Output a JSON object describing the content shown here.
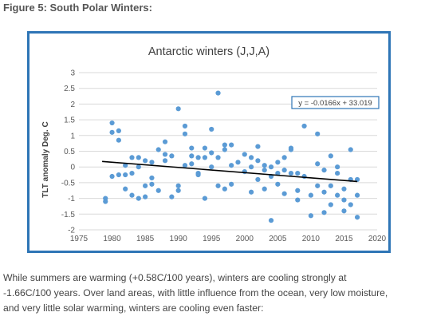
{
  "figure_heading": "Figure 5:  South Polar Winters:",
  "caption_lines": [
    "While summers are warming (+0.58C/100 years), winters are cooling strongly at",
    "-1.66C/100 years.  Over land areas, with little influence from the ocean, very low moisture,",
    "and very little solar warming, winters are cooling even faster:"
  ],
  "colors": {
    "frame": "#2e75b6",
    "points": "#5b9bd5",
    "trend": "#000000",
    "grid": "#d9d9d9",
    "equation_border": "#2e75b6"
  },
  "chart_data": {
    "type": "scatter",
    "title": "Antarctic winters (J,J,A)",
    "xlabel": "",
    "ylabel": "TLT anomaly Deg. C",
    "xlim": [
      1975,
      2020
    ],
    "ylim": [
      -2,
      3
    ],
    "x_ticks": [
      1975,
      1980,
      1985,
      1990,
      1995,
      2000,
      2005,
      2010,
      2015,
      2020
    ],
    "y_ticks": [
      -2,
      -1.5,
      -1,
      -0.5,
      0,
      0.5,
      1,
      1.5,
      2,
      2.5,
      3
    ],
    "grid": "horizontal",
    "legend": "none",
    "trendline": {
      "slope": -0.0166,
      "intercept": 33.019,
      "x_range": [
        1978.5,
        2017
      ],
      "equation": "y = -0.0166x + 33.019"
    },
    "points": [
      [
        1979,
        -1.0
      ],
      [
        1979,
        -1.1
      ],
      [
        1980,
        1.4
      ],
      [
        1980,
        1.1
      ],
      [
        1980,
        -0.3
      ],
      [
        1981,
        1.15
      ],
      [
        1981,
        0.85
      ],
      [
        1981,
        -0.25
      ],
      [
        1982,
        0.05
      ],
      [
        1982,
        -0.7
      ],
      [
        1982,
        -0.25
      ],
      [
        1983,
        0.3
      ],
      [
        1983,
        -0.2
      ],
      [
        1983,
        -0.9
      ],
      [
        1984,
        0.3
      ],
      [
        1984,
        -1.0
      ],
      [
        1984,
        0.0
      ],
      [
        1985,
        0.2
      ],
      [
        1985,
        -0.6
      ],
      [
        1985,
        -0.95
      ],
      [
        1986,
        0.15
      ],
      [
        1986,
        -0.35
      ],
      [
        1986,
        -0.55
      ],
      [
        1987,
        0.55
      ],
      [
        1987,
        -0.75
      ],
      [
        1988,
        0.8
      ],
      [
        1988,
        0.4
      ],
      [
        1988,
        0.2
      ],
      [
        1989,
        0.35
      ],
      [
        1989,
        -0.95
      ],
      [
        1990,
        1.85
      ],
      [
        1990,
        -0.6
      ],
      [
        1990,
        -0.75
      ],
      [
        1991,
        1.3
      ],
      [
        1991,
        1.05
      ],
      [
        1991,
        0.05
      ],
      [
        1992,
        0.6
      ],
      [
        1992,
        0.35
      ],
      [
        1992,
        0.1
      ],
      [
        1993,
        0.3
      ],
      [
        1993,
        -0.2
      ],
      [
        1993,
        -0.25
      ],
      [
        1994,
        0.6
      ],
      [
        1994,
        0.3
      ],
      [
        1994,
        -1.0
      ],
      [
        1995,
        1.2
      ],
      [
        1995,
        0.45
      ],
      [
        1995,
        0.0
      ],
      [
        1996,
        2.35
      ],
      [
        1996,
        0.3
      ],
      [
        1996,
        -0.6
      ],
      [
        1997,
        0.7
      ],
      [
        1997,
        0.55
      ],
      [
        1997,
        -0.7
      ],
      [
        1998,
        0.7
      ],
      [
        1998,
        0.05
      ],
      [
        1998,
        -0.55
      ],
      [
        1999,
        0.15
      ],
      [
        2000,
        0.4
      ],
      [
        2000,
        -0.15
      ],
      [
        2001,
        0.3
      ],
      [
        2001,
        0.0
      ],
      [
        2001,
        -0.8
      ],
      [
        2002,
        0.65
      ],
      [
        2002,
        0.2
      ],
      [
        2002,
        -0.4
      ],
      [
        2003,
        0.05
      ],
      [
        2003,
        -0.1
      ],
      [
        2003,
        -0.7
      ],
      [
        2004,
        -1.7
      ],
      [
        2004,
        -0.3
      ],
      [
        2004,
        0.0
      ],
      [
        2005,
        0.15
      ],
      [
        2005,
        -0.2
      ],
      [
        2005,
        -0.55
      ],
      [
        2006,
        0.3
      ],
      [
        2006,
        -0.1
      ],
      [
        2006,
        -0.85
      ],
      [
        2007,
        0.6
      ],
      [
        2007,
        0.55
      ],
      [
        2007,
        -0.2
      ],
      [
        2008,
        -0.75
      ],
      [
        2008,
        -1.05
      ],
      [
        2008,
        -0.2
      ],
      [
        2009,
        1.3
      ],
      [
        2009,
        -0.3
      ],
      [
        2010,
        -1.55
      ],
      [
        2010,
        -0.9
      ],
      [
        2011,
        1.05
      ],
      [
        2011,
        0.1
      ],
      [
        2011,
        -0.6
      ],
      [
        2012,
        -0.1
      ],
      [
        2012,
        -1.45
      ],
      [
        2012,
        -0.8
      ],
      [
        2013,
        0.35
      ],
      [
        2013,
        -0.6
      ],
      [
        2013,
        -1.2
      ],
      [
        2014,
        0.0
      ],
      [
        2014,
        -0.2
      ],
      [
        2014,
        -0.9
      ],
      [
        2015,
        -0.7
      ],
      [
        2015,
        -1.4
      ],
      [
        2015,
        -1.05
      ],
      [
        2016,
        0.55
      ],
      [
        2016,
        -0.4
      ],
      [
        2016,
        -1.2
      ],
      [
        2017,
        -0.4
      ],
      [
        2017,
        -0.9
      ],
      [
        2017,
        -1.6
      ]
    ]
  }
}
